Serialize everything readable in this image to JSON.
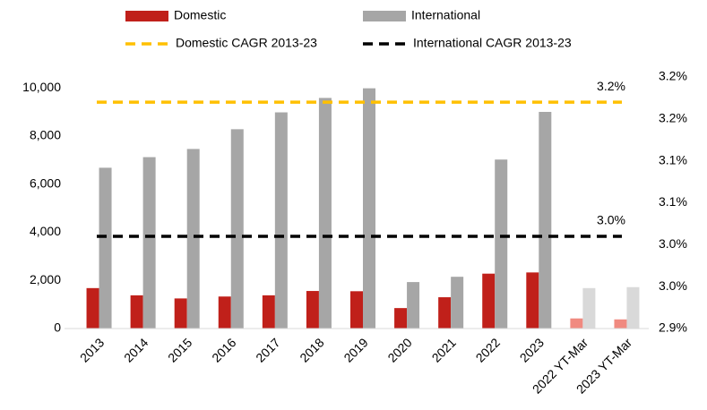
{
  "chart_data": {
    "type": "bar",
    "categories": [
      "2013",
      "2014",
      "2015",
      "2016",
      "2017",
      "2018",
      "2019",
      "2020",
      "2021",
      "2022",
      "2023",
      "2022 YT-Mar",
      "2023 YT-Mar"
    ],
    "series": [
      {
        "name": "Domestic",
        "color": "#c0201a",
        "colors": [
          "#c0201a",
          "#c0201a",
          "#c0201a",
          "#c0201a",
          "#c0201a",
          "#c0201a",
          "#c0201a",
          "#c0201a",
          "#c0201a",
          "#c0201a",
          "#c0201a",
          "#f08a80",
          "#f08a80"
        ],
        "values": [
          1680,
          1380,
          1250,
          1330,
          1380,
          1560,
          1550,
          850,
          1300,
          2280,
          2330,
          420,
          380
        ]
      },
      {
        "name": "International",
        "color": "#a6a6a6",
        "colors": [
          "#a6a6a6",
          "#a6a6a6",
          "#a6a6a6",
          "#a6a6a6",
          "#a6a6a6",
          "#a6a6a6",
          "#a6a6a6",
          "#a6a6a6",
          "#a6a6a6",
          "#a6a6a6",
          "#a6a6a6",
          "#d9d9d9",
          "#d9d9d9"
        ],
        "values": [
          6680,
          7120,
          7460,
          8280,
          8980,
          9580,
          9980,
          1930,
          2150,
          7020,
          9000,
          1680,
          1720
        ]
      }
    ],
    "lines": [
      {
        "name": "Domestic CAGR 2013-23",
        "color": "#ffc000",
        "axis": "y2",
        "value": 3.17,
        "value_label": "3.2%"
      },
      {
        "name": "International CAGR 2013-23",
        "color": "#000000",
        "axis": "y2",
        "value": 3.01,
        "value_label": "3.0%"
      }
    ],
    "ylim": [
      0,
      10450
    ],
    "yticks": [
      0,
      {
        "value": 2000,
        "label": "2,000"
      },
      {
        "value": 4000,
        "label": "4,000"
      },
      {
        "value": 6000,
        "label": "6,000"
      },
      {
        "value": 8000,
        "label": "8,000"
      },
      {
        "value": 10000,
        "label": "10,000"
      }
    ],
    "y2lim": [
      2.9,
      3.2
    ],
    "y2ticks": [
      {
        "value": 2.9,
        "label": "2.9%"
      },
      {
        "value": 2.95,
        "label": "3.0%"
      },
      {
        "value": 3.0,
        "label": "3.0%"
      },
      {
        "value": 3.05,
        "label": "3.1%"
      },
      {
        "value": 3.1,
        "label": "3.1%"
      },
      {
        "value": 3.15,
        "label": "3.2%"
      },
      {
        "value": 3.2,
        "label": "3.2%"
      }
    ],
    "grid": false
  }
}
